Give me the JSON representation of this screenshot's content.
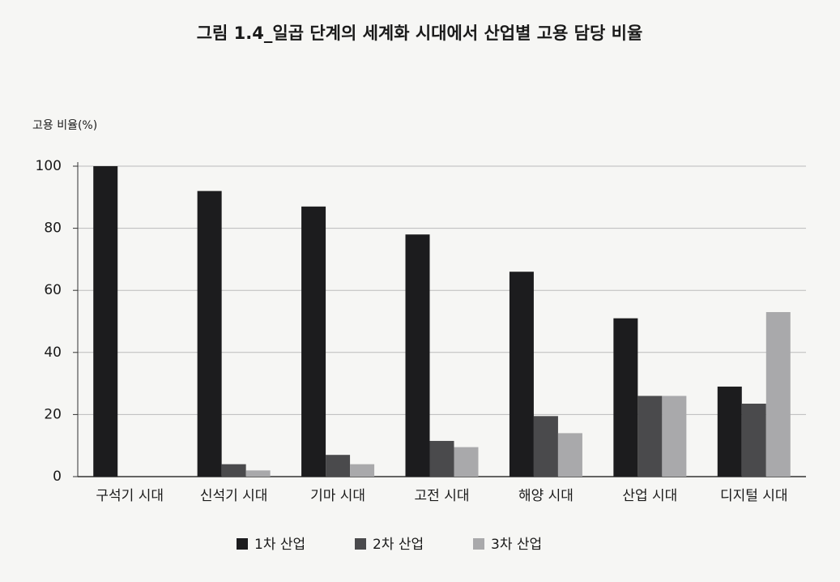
{
  "chart_data": {
    "type": "bar",
    "title": "그림 1.4_일곱 단계의 세계화 시대에서 산업별 고용 담당 비율",
    "y_label": "고용 비율(%)",
    "categories": [
      "구석기 시대",
      "신석기 시대",
      "기마 시대",
      "고전 시대",
      "해양 시대",
      "산업 시대",
      "디지털 시대"
    ],
    "series": [
      {
        "name": "1차 산업",
        "color": "#1c1c1e",
        "values": [
          100,
          92,
          87,
          78,
          66,
          51,
          29
        ]
      },
      {
        "name": "2차 산업",
        "color": "#4a4a4c",
        "values": [
          0,
          4,
          7,
          11.5,
          19.5,
          26,
          23.5
        ]
      },
      {
        "name": "3차 산업",
        "color": "#a9a9ab",
        "values": [
          0,
          2,
          4,
          9.5,
          14,
          26,
          53
        ]
      }
    ],
    "ylim": [
      0,
      100
    ],
    "yticks": [
      0,
      20,
      40,
      60,
      80,
      100
    ],
    "grid": true
  }
}
